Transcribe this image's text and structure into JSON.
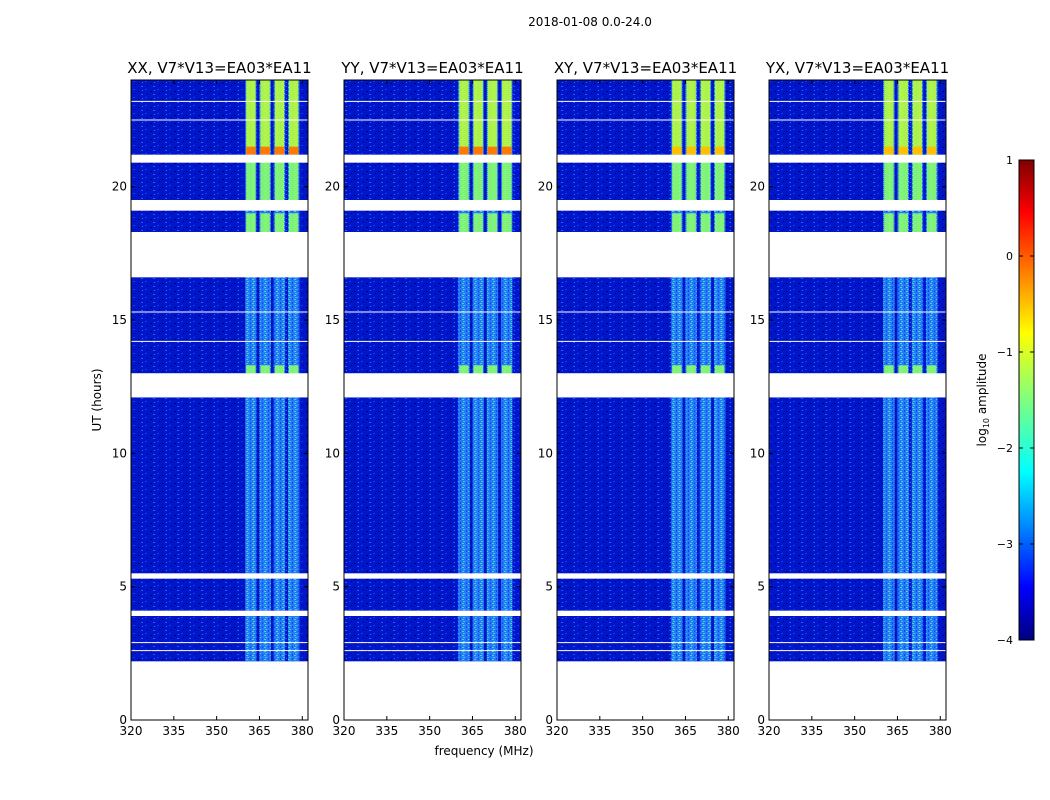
{
  "figure": {
    "title": "2018-01-08 0.0-24.0",
    "xlabel": "frequency (MHz)",
    "ylabel": "UT (hours)"
  },
  "colorbar": {
    "label_main": "log",
    "label_sub": "10",
    "label_rest": " amplitude",
    "range": [
      -4,
      1
    ],
    "ticks": [
      {
        "value": 1,
        "label": "1"
      },
      {
        "value": 0,
        "label": "0"
      },
      {
        "value": -1,
        "label": "−1"
      },
      {
        "value": -2,
        "label": "−2"
      },
      {
        "value": -3,
        "label": "−3"
      },
      {
        "value": -4,
        "label": "−4"
      }
    ],
    "colormap": "jet"
  },
  "chart_data": [
    {
      "type": "heatmap",
      "title": "XX, V7*V13=EA03*EA11",
      "xlim": [
        320,
        382
      ],
      "ylim": [
        0,
        24
      ],
      "xticks": [
        320,
        335,
        350,
        365,
        380
      ],
      "yticks": [
        0,
        5,
        10,
        15,
        20
      ],
      "data_hours": [
        [
          2.2,
          12.1
        ],
        [
          13.0,
          24.0
        ]
      ],
      "band_MHz": [
        360,
        379
      ],
      "rfi_channels_MHz": [
        360,
        365,
        370,
        375
      ],
      "bright_segments_hours": [
        [
          12.2,
          13.3
        ],
        [
          18.0,
          19.0
        ],
        [
          19.5,
          21.0
        ],
        [
          21.2,
          24.0
        ]
      ],
      "dropout_hours": [
        3.9,
        4.1,
        5.3,
        5.5,
        12.1,
        13.0,
        16.6,
        18.3,
        19.1,
        19.5,
        20.9,
        21.2
      ]
    },
    {
      "type": "heatmap",
      "title": "YY, V7*V13=EA03*EA11",
      "xlim": [
        320,
        382
      ],
      "ylim": [
        0,
        24
      ],
      "xticks": [
        320,
        335,
        350,
        365,
        380
      ],
      "yticks": [
        0,
        5,
        10,
        15,
        20
      ],
      "data_hours": [
        [
          2.2,
          12.1
        ],
        [
          13.0,
          24.0
        ]
      ],
      "band_MHz": [
        360,
        379
      ],
      "rfi_channels_MHz": [
        360,
        365,
        370,
        375
      ],
      "bright_segments_hours": [
        [
          12.2,
          13.3
        ],
        [
          18.0,
          19.0
        ],
        [
          19.5,
          21.0
        ],
        [
          21.2,
          24.0
        ]
      ],
      "dropout_hours": [
        3.9,
        4.1,
        5.3,
        5.5,
        12.1,
        13.0,
        16.6,
        18.3,
        19.1,
        19.5,
        20.9,
        21.2
      ]
    },
    {
      "type": "heatmap",
      "title": "XY, V7*V13=EA03*EA11",
      "xlim": [
        320,
        382
      ],
      "ylim": [
        0,
        24
      ],
      "xticks": [
        320,
        335,
        350,
        365,
        380
      ],
      "yticks": [
        0,
        5,
        10,
        15,
        20
      ],
      "data_hours": [
        [
          2.2,
          12.1
        ],
        [
          13.0,
          24.0
        ]
      ],
      "band_MHz": [
        360,
        379
      ],
      "rfi_channels_MHz": [
        360,
        365,
        370,
        375
      ],
      "bright_segments_hours": [
        [
          12.2,
          13.3
        ],
        [
          18.0,
          19.0
        ],
        [
          19.5,
          21.0
        ],
        [
          21.2,
          24.0
        ]
      ],
      "dropout_hours": [
        3.9,
        4.1,
        5.3,
        5.5,
        12.1,
        13.0,
        16.6,
        18.3,
        19.1,
        19.5,
        20.9,
        21.2
      ]
    },
    {
      "type": "heatmap",
      "title": "YX, V7*V13=EA03*EA11",
      "xlim": [
        320,
        382
      ],
      "ylim": [
        0,
        24
      ],
      "xticks": [
        320,
        335,
        350,
        365,
        380
      ],
      "yticks": [
        0,
        5,
        10,
        15,
        20
      ],
      "data_hours": [
        [
          2.2,
          12.1
        ],
        [
          13.0,
          24.0
        ]
      ],
      "band_MHz": [
        360,
        379
      ],
      "rfi_channels_MHz": [
        360,
        365,
        370,
        375
      ],
      "bright_segments_hours": [
        [
          12.2,
          13.3
        ],
        [
          18.0,
          19.0
        ],
        [
          19.5,
          21.0
        ],
        [
          21.2,
          24.0
        ]
      ],
      "dropout_hours": [
        3.9,
        4.1,
        5.3,
        5.5,
        12.1,
        13.0,
        16.6,
        18.3,
        19.1,
        19.5,
        20.9,
        21.2
      ]
    }
  ]
}
